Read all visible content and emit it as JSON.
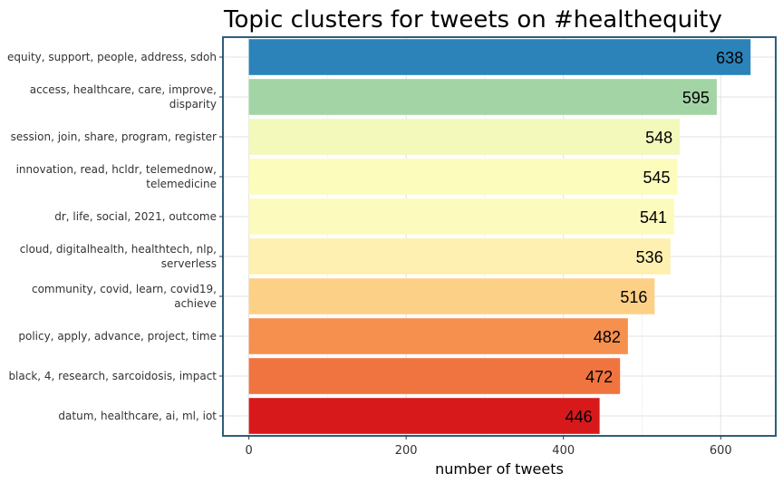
{
  "chart_data": {
    "type": "bar",
    "orientation": "horizontal",
    "title": "Topic clusters for tweets on #healthequity",
    "xlabel": "number of tweets",
    "ylabel": "",
    "xlim": [
      -33,
      670
    ],
    "xticks": [
      0,
      200,
      400,
      600
    ],
    "grid": true,
    "categories": [
      [
        "equity, support, people, address, sdoh"
      ],
      [
        "access, healthcare, care, improve,",
        "disparity"
      ],
      [
        "session, join, share, program, register"
      ],
      [
        "innovation, read, hcldr, telemednow,",
        "telemedicine"
      ],
      [
        "dr, life, social, 2021, outcome"
      ],
      [
        "cloud, digitalhealth, healthtech, nlp,",
        "serverless"
      ],
      [
        "community, covid, learn, covid19,",
        "achieve"
      ],
      [
        "policy, apply, advance, project, time"
      ],
      [
        "black, 4, research, sarcoidosis, impact"
      ],
      [
        "datum, healthcare, ai, ml, iot"
      ]
    ],
    "values": [
      638,
      595,
      548,
      545,
      541,
      536,
      516,
      482,
      472,
      446
    ],
    "colors": [
      "#2b83ba",
      "#a3d4a5",
      "#f2f9bb",
      "#fcfcbc",
      "#fdfabe",
      "#fdf0b0",
      "#fdd088",
      "#f5904f",
      "#ef7440",
      "#d7191c"
    ]
  }
}
